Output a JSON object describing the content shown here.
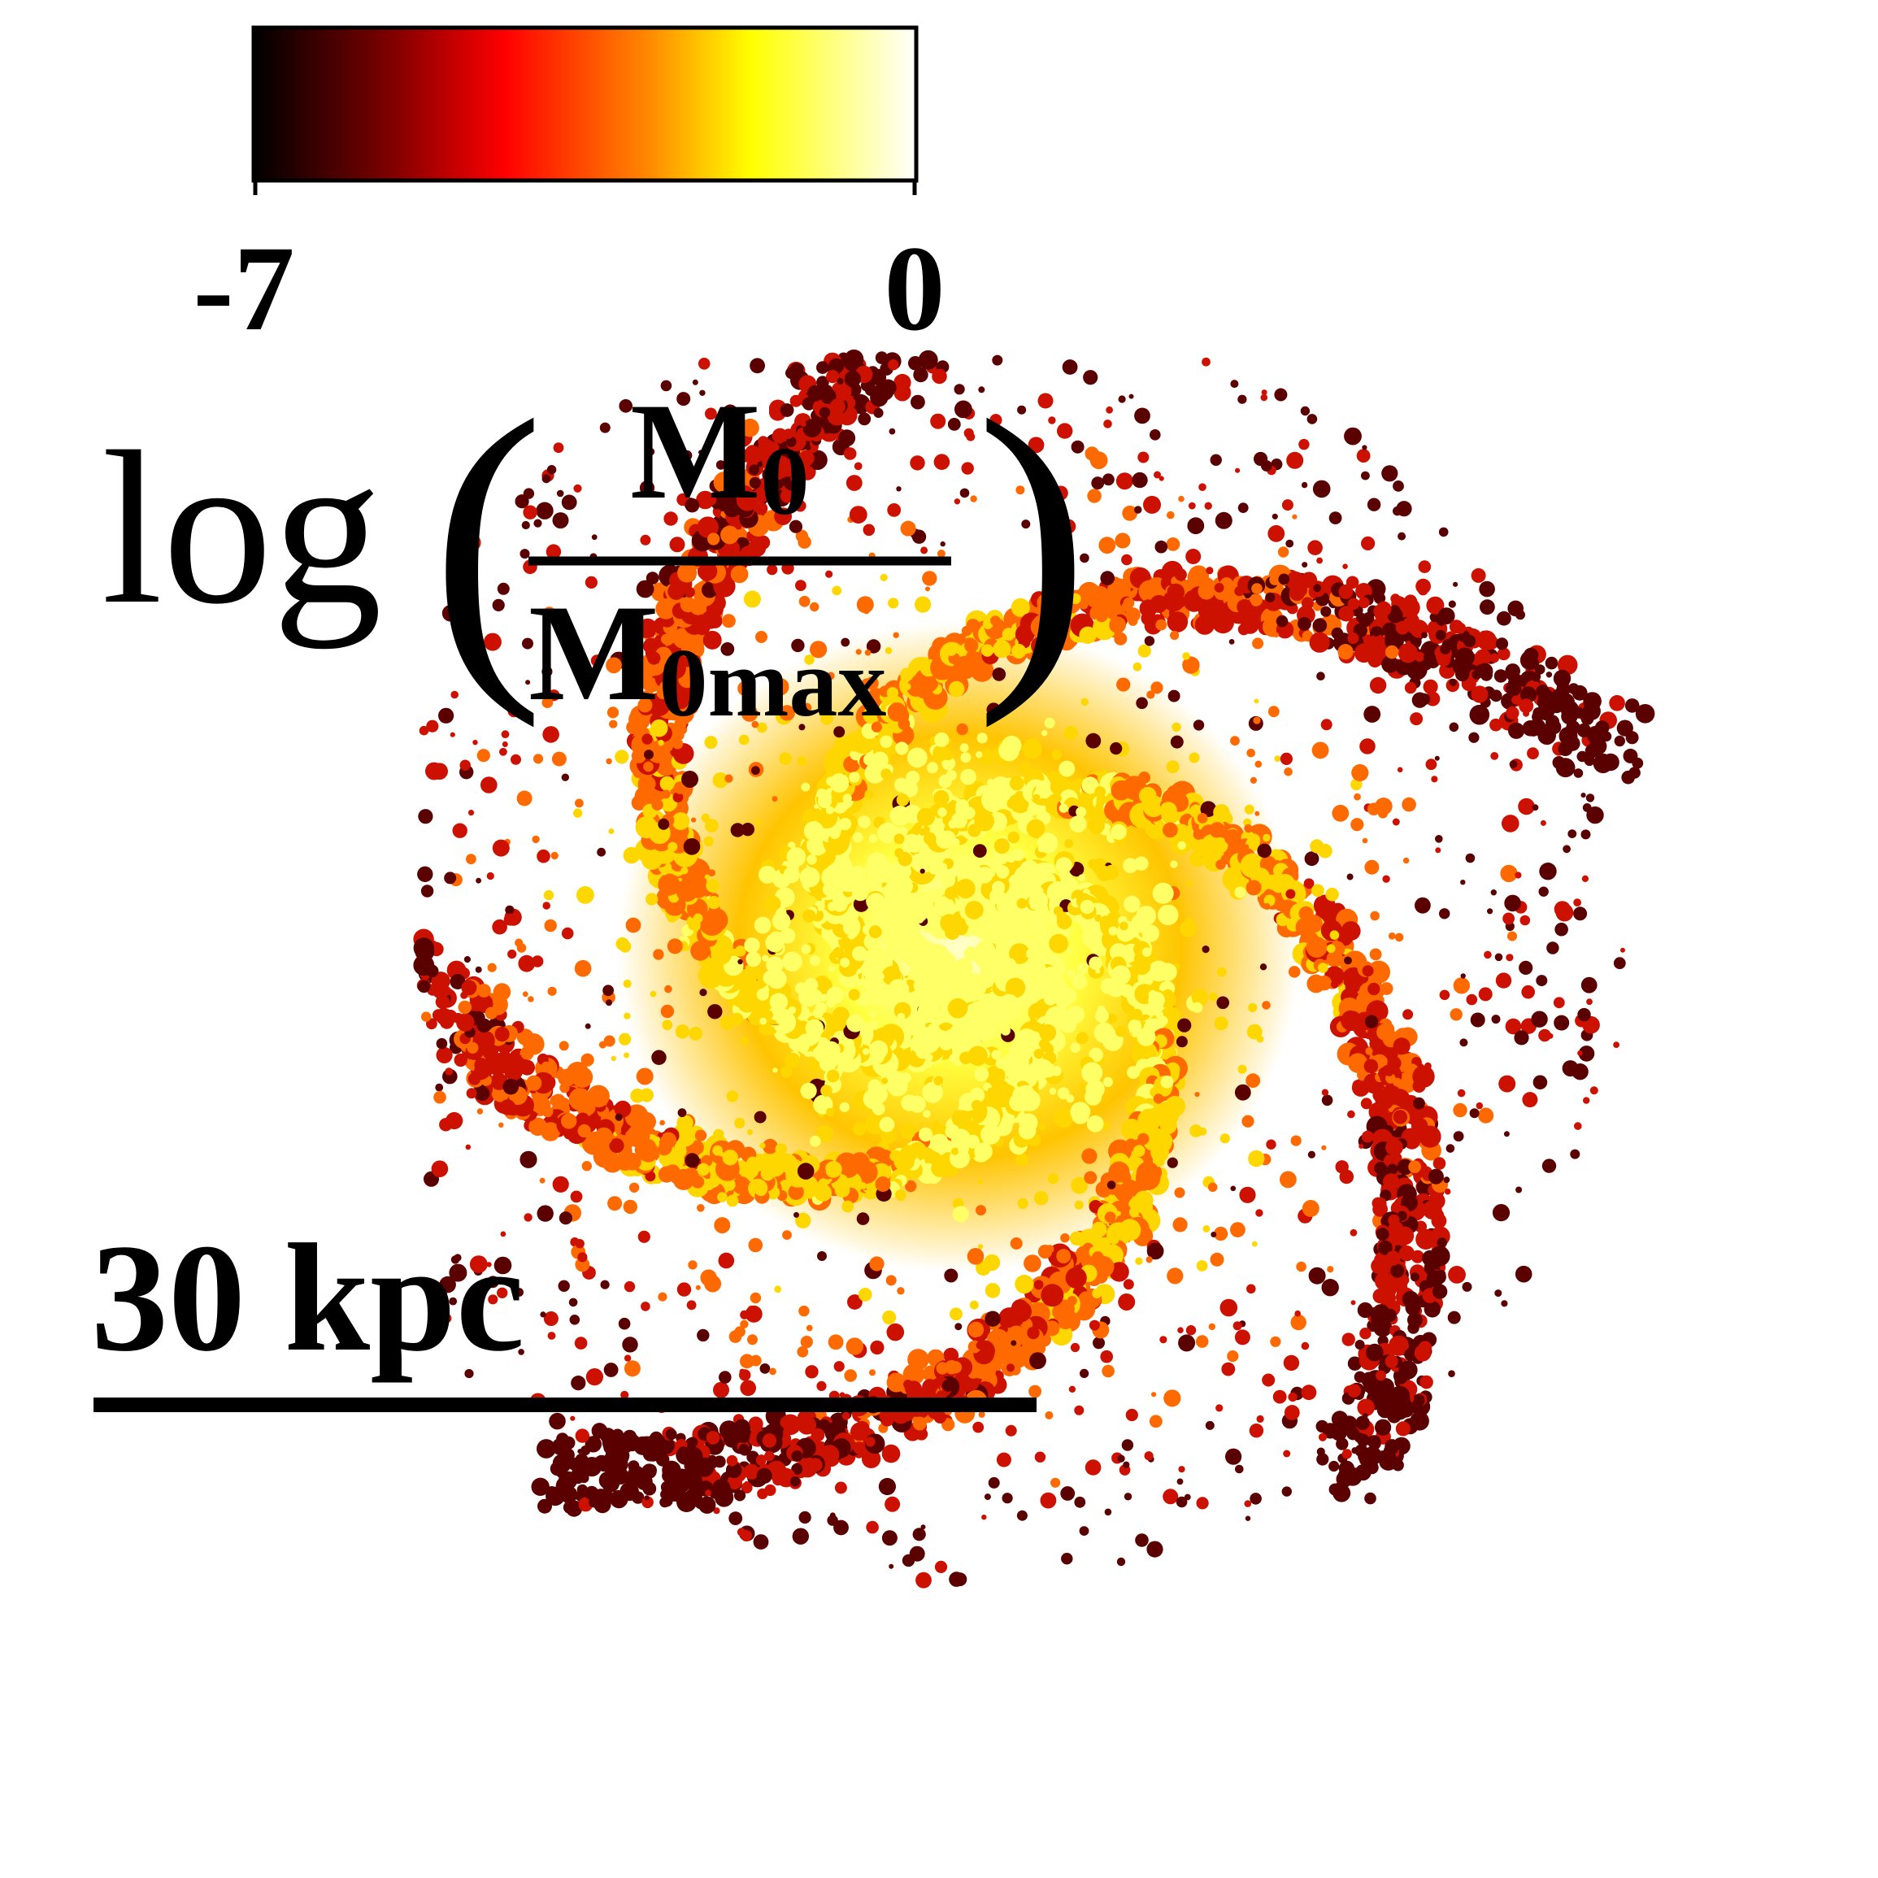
{
  "colorbar": {
    "min_label": "-7",
    "max_label": "0",
    "colormap": [
      "#000000",
      "#7a0000",
      "#ff0000",
      "#ff8c00",
      "#ffff00",
      "#ffffff"
    ]
  },
  "quantity_label": {
    "log": "log",
    "numerator": "M",
    "numerator_sub": "0",
    "denominator": "M",
    "denominator_sub": "0max"
  },
  "scale_bar": {
    "label": "30 kpc"
  },
  "image": {
    "subject": "face-on spiral galaxy map",
    "colors": {
      "core": "#ffff66",
      "arm": "#ffd700",
      "mid": "#ff6a00",
      "outer": "#cc1100",
      "faint": "#5a0000"
    }
  }
}
